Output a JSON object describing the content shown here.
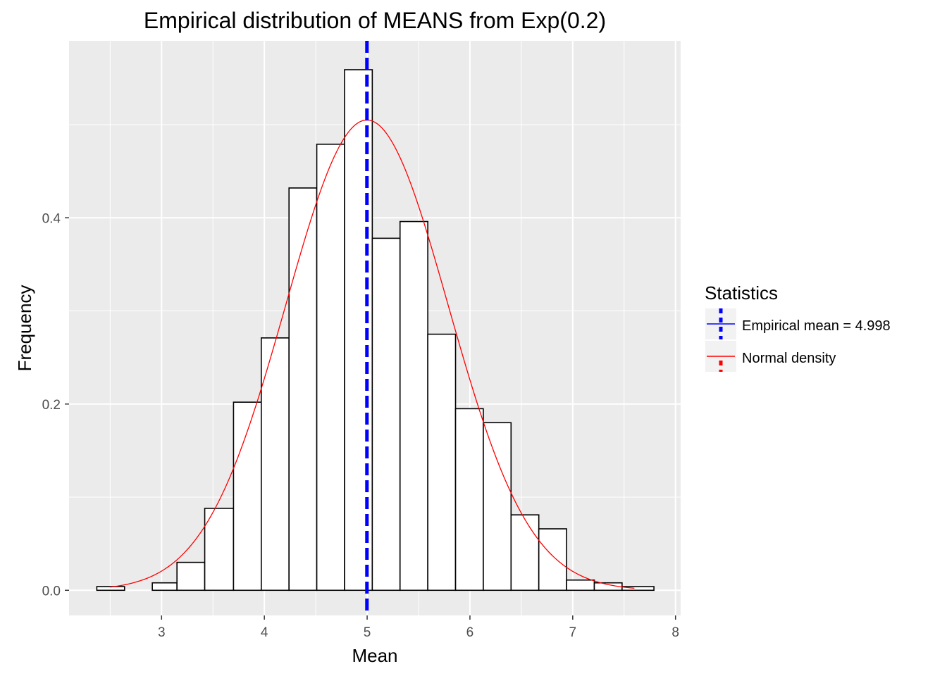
{
  "chart_data": {
    "type": "bar",
    "title": "Empirical distribution of MEANS from Exp(0.2)",
    "xlabel": "Mean",
    "ylabel": "Frequency",
    "xlim": [
      2.1,
      8.05
    ],
    "ylim": [
      -0.027,
      0.59
    ],
    "x_ticks": [
      3,
      4,
      5,
      6,
      7,
      8
    ],
    "x_tick_labels": [
      "3",
      "4",
      "5",
      "6",
      "7",
      "8"
    ],
    "y_ticks": [
      0.0,
      0.2,
      0.4
    ],
    "y_tick_labels": [
      "0.0",
      "0.2",
      "0.4"
    ],
    "grid": true,
    "legend_position": "right",
    "bins": [
      {
        "start": 2.37,
        "end": 2.64,
        "value": 0.004
      },
      {
        "start": 2.64,
        "end": 2.91,
        "value": 0.0
      },
      {
        "start": 2.91,
        "end": 3.15,
        "value": 0.008
      },
      {
        "start": 3.15,
        "end": 3.42,
        "value": 0.03
      },
      {
        "start": 3.42,
        "end": 3.7,
        "value": 0.088
      },
      {
        "start": 3.7,
        "end": 3.97,
        "value": 0.202
      },
      {
        "start": 3.97,
        "end": 4.24,
        "value": 0.271
      },
      {
        "start": 4.24,
        "end": 4.51,
        "value": 0.432
      },
      {
        "start": 4.51,
        "end": 4.78,
        "value": 0.479
      },
      {
        "start": 4.78,
        "end": 5.05,
        "value": 0.559
      },
      {
        "start": 5.05,
        "end": 5.32,
        "value": 0.378
      },
      {
        "start": 5.32,
        "end": 5.59,
        "value": 0.396
      },
      {
        "start": 5.59,
        "end": 5.86,
        "value": 0.275
      },
      {
        "start": 5.86,
        "end": 6.13,
        "value": 0.195
      },
      {
        "start": 6.13,
        "end": 6.4,
        "value": 0.18
      },
      {
        "start": 6.4,
        "end": 6.67,
        "value": 0.081
      },
      {
        "start": 6.67,
        "end": 6.94,
        "value": 0.066
      },
      {
        "start": 6.94,
        "end": 7.21,
        "value": 0.011
      },
      {
        "start": 7.21,
        "end": 7.48,
        "value": 0.008
      },
      {
        "start": 7.48,
        "end": 7.79,
        "value": 0.004
      }
    ],
    "vline": {
      "x": 4.998,
      "color": "#0000ff",
      "style": "dashed"
    },
    "density": {
      "mean": 4.998,
      "sd": 0.79,
      "x_from": 2.5,
      "x_to": 7.6,
      "color": "#ff0000"
    },
    "legend": {
      "title": "Statistics",
      "entries": [
        {
          "label": "Empirical mean =  4.998",
          "color": "#0000ff"
        },
        {
          "label": "Normal density",
          "color": "#ff0000"
        }
      ]
    },
    "colors": {
      "panel": "#ebebeb",
      "grid": "#ffffff",
      "bar_fill": "#ffffff",
      "bar_stroke": "#000000"
    }
  }
}
